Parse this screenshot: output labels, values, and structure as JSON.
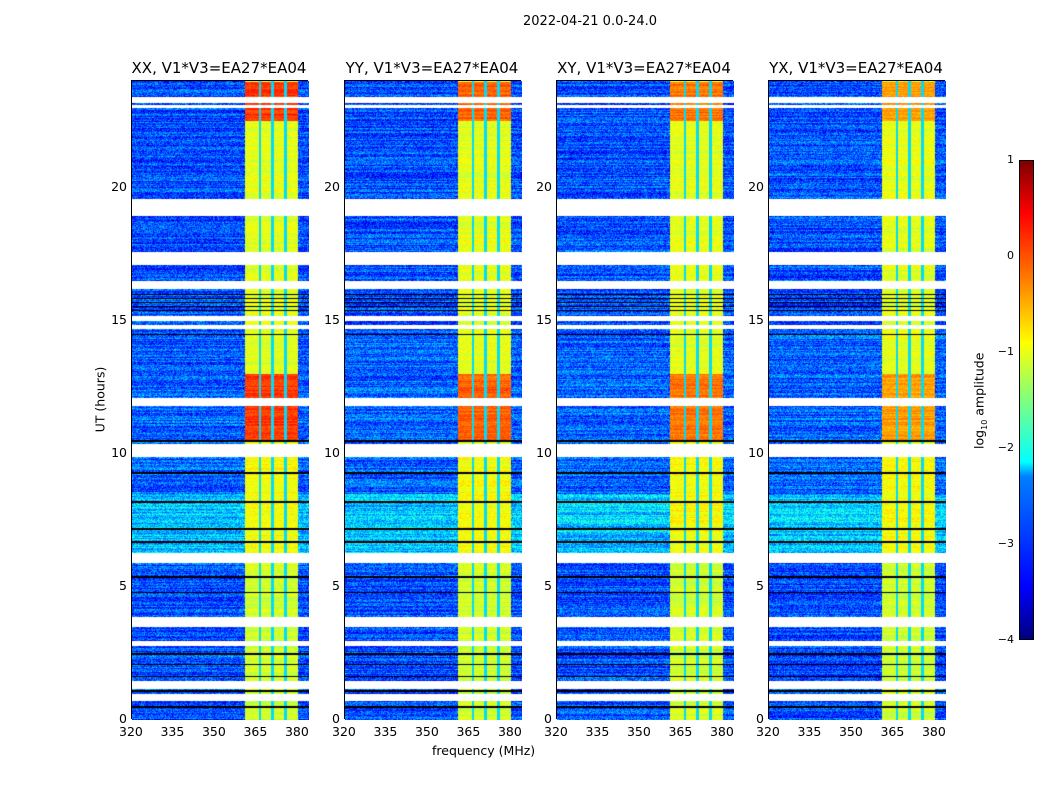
{
  "chart_data": {
    "type": "heatmap",
    "title": "2022-04-21 0.0-24.0",
    "xlabel": "frequency (MHz)",
    "ylabel": "UT (hours)",
    "xlim": [
      320,
      384
    ],
    "ylim": [
      0,
      24
    ],
    "xticks": [
      "320",
      "335",
      "350",
      "365",
      "380"
    ],
    "xtick_values": [
      320,
      335,
      350,
      365,
      380
    ],
    "yticks": [
      "0",
      "5",
      "10",
      "15",
      "20"
    ],
    "ytick_values": [
      0,
      5,
      10,
      15,
      20
    ],
    "colorbar": {
      "label_main": "log",
      "label_sub": "10",
      "label_rest": " amplitude",
      "range": [
        -4,
        1
      ],
      "ticks": [
        "1",
        "0",
        "−1",
        "−2",
        "−3",
        "−4"
      ],
      "tick_values": [
        1,
        0,
        -1,
        -2,
        -3,
        -4
      ],
      "colormap": "jet"
    },
    "panels": [
      {
        "title": "XX, V1*V3=EA27*EA04",
        "band_boost": 0.6
      },
      {
        "title": "YY, V1*V3=EA27*EA04",
        "band_boost": 0.4
      },
      {
        "title": "XY, V1*V3=EA27*EA04",
        "band_boost": 0.3
      },
      {
        "title": "YX, V1*V3=EA27*EA04",
        "band_boost": 0.1
      }
    ],
    "flagged_hours": [
      [
        23.2,
        23.4
      ],
      [
        23.0,
        23.1
      ],
      [
        18.95,
        19.6
      ],
      [
        17.1,
        17.6
      ],
      [
        16.2,
        16.5
      ],
      [
        15.0,
        15.2
      ],
      [
        14.7,
        14.85
      ],
      [
        11.8,
        12.1
      ],
      [
        9.9,
        10.4
      ],
      [
        5.9,
        6.3
      ],
      [
        3.5,
        3.9
      ],
      [
        2.8,
        3.0
      ],
      [
        1.2,
        1.5
      ],
      [
        0.75,
        1.0
      ]
    ],
    "black_line_hours": [
      15.4,
      15.55,
      15.7,
      15.85,
      16.0,
      14.5,
      12.1,
      10.5,
      9.3,
      8.2,
      7.2,
      6.7,
      5.4,
      4.8,
      2.5,
      2.1,
      1.65,
      1.1,
      0.9,
      0.5
    ],
    "background_segments": [
      {
        "hours": [
          0,
          6
        ],
        "level": -3.0
      },
      {
        "hours": [
          6.3,
          8.5
        ],
        "level": -2.4
      },
      {
        "hours": [
          8.5,
          14.5
        ],
        "level": -2.9
      },
      {
        "hours": [
          14.5,
          23.9
        ],
        "level": -3.0
      }
    ],
    "rfi_band": {
      "freq": [
        360.5,
        380
      ],
      "channel_edges": [
        366,
        370.6,
        375.3
      ],
      "segments": [
        {
          "hours": [
            0,
            6
          ],
          "level": -1.1
        },
        {
          "hours": [
            6,
            10
          ],
          "level": -0.9
        },
        {
          "hours": [
            10.5,
            13
          ],
          "level": -0.2
        },
        {
          "hours": [
            13,
            22.5
          ],
          "level": -1.0
        },
        {
          "hours": [
            22.5,
            24
          ],
          "level": -0.2
        }
      ]
    }
  }
}
